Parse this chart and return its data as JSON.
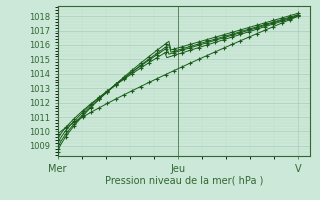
{
  "xlabel": "Pression niveau de la mer( hPa )",
  "bg_color": "#cce8d8",
  "plot_bg_color": "#cce8d8",
  "grid_major_color": "#aaccbb",
  "grid_minor_color": "#bbddc8",
  "line_color": "#1a5c1a",
  "axis_color": "#336633",
  "tick_color": "#336633",
  "ylim": [
    1008.3,
    1018.7
  ],
  "yticks": [
    1009,
    1010,
    1011,
    1012,
    1013,
    1014,
    1015,
    1016,
    1017,
    1018
  ],
  "xtick_labels": [
    "Mer",
    "Jeu",
    "V"
  ],
  "xtick_positions": [
    0.0,
    0.5,
    1.0
  ],
  "xlim": [
    0.0,
    1.05
  ]
}
